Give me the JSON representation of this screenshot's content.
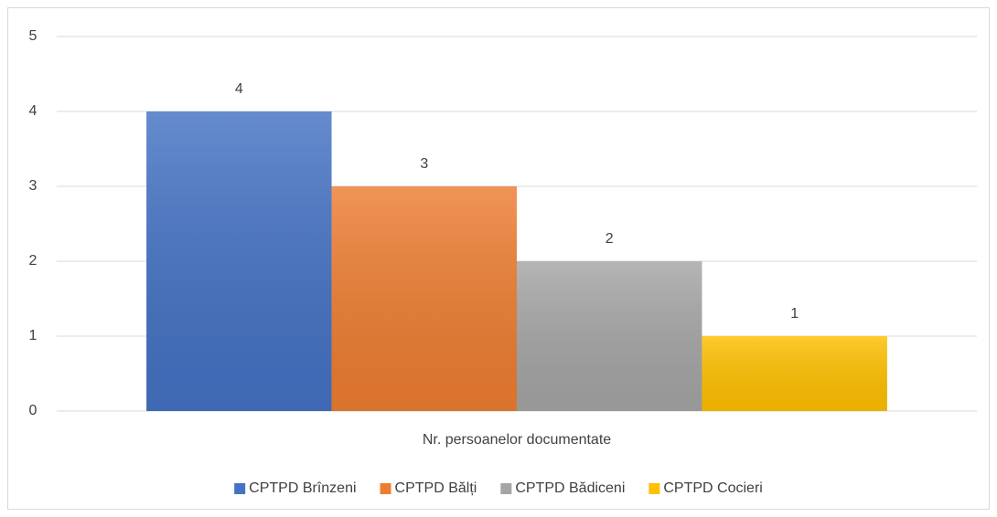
{
  "chart_data": {
    "type": "bar",
    "categories": [
      "Nr. persoanelor documentate"
    ],
    "series": [
      {
        "name": "CPTPD Brînzeni",
        "color": "#4472c4",
        "values": [
          4
        ]
      },
      {
        "name": "CPTPD Bălți",
        "color": "#ed7d31",
        "values": [
          3
        ]
      },
      {
        "name": "CPTPD Bădiceni",
        "color": "#a5a5a5",
        "values": [
          2
        ]
      },
      {
        "name": "CPTPD Cocieri",
        "color": "#ffc000",
        "values": [
          1
        ]
      }
    ],
    "ylim": [
      0,
      5
    ],
    "yticks": [
      0,
      1,
      2,
      3,
      4,
      5
    ],
    "grid": true,
    "legend": "bottom"
  }
}
